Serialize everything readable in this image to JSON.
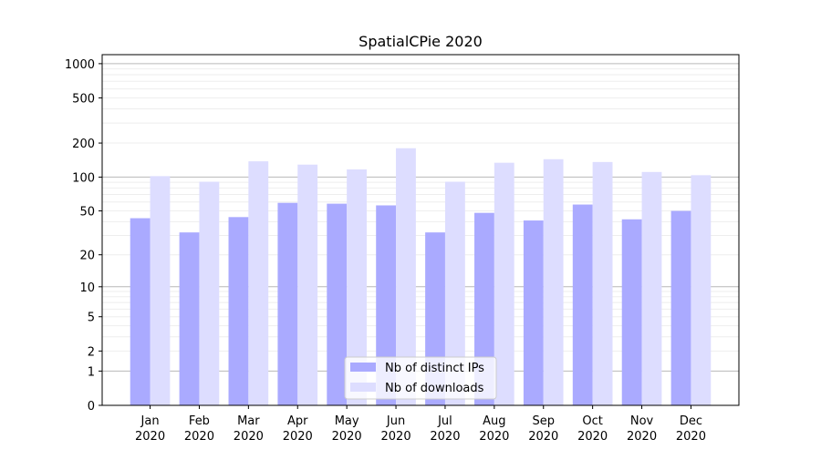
{
  "chart_data": {
    "type": "bar",
    "title": "SpatialCPie 2020",
    "xlabel": "",
    "ylabel": "",
    "y_scale": "log(1+y)",
    "ylim": [
      0,
      1200
    ],
    "grid": "horizontal, major and minor",
    "categories": [
      {
        "month": "Jan",
        "year": "2020"
      },
      {
        "month": "Feb",
        "year": "2020"
      },
      {
        "month": "Mar",
        "year": "2020"
      },
      {
        "month": "Apr",
        "year": "2020"
      },
      {
        "month": "May",
        "year": "2020"
      },
      {
        "month": "Jun",
        "year": "2020"
      },
      {
        "month": "Jul",
        "year": "2020"
      },
      {
        "month": "Aug",
        "year": "2020"
      },
      {
        "month": "Sep",
        "year": "2020"
      },
      {
        "month": "Oct",
        "year": "2020"
      },
      {
        "month": "Nov",
        "year": "2020"
      },
      {
        "month": "Dec",
        "year": "2020"
      }
    ],
    "yticks": [
      {
        "value": 0,
        "label": "0"
      },
      {
        "value": 1,
        "label": "1"
      },
      {
        "value": 2,
        "label": "2"
      },
      {
        "value": 5,
        "label": "5"
      },
      {
        "value": 10,
        "label": "10"
      },
      {
        "value": 20,
        "label": "20"
      },
      {
        "value": 50,
        "label": "50"
      },
      {
        "value": 100,
        "label": "100"
      },
      {
        "value": 200,
        "label": "200"
      },
      {
        "value": 500,
        "label": "500"
      },
      {
        "value": 1000,
        "label": "1000"
      }
    ],
    "series": [
      {
        "name": "Nb of distinct IPs",
        "color": "#aaaaff",
        "values": [
          43,
          32,
          44,
          59,
          58,
          56,
          32,
          48,
          41,
          57,
          42,
          50
        ]
      },
      {
        "name": "Nb of downloads",
        "color": "#ddddff",
        "values": [
          102,
          91,
          138,
          129,
          117,
          180,
          91,
          134,
          144,
          136,
          111,
          104
        ]
      }
    ],
    "legend_position": "lower center"
  }
}
